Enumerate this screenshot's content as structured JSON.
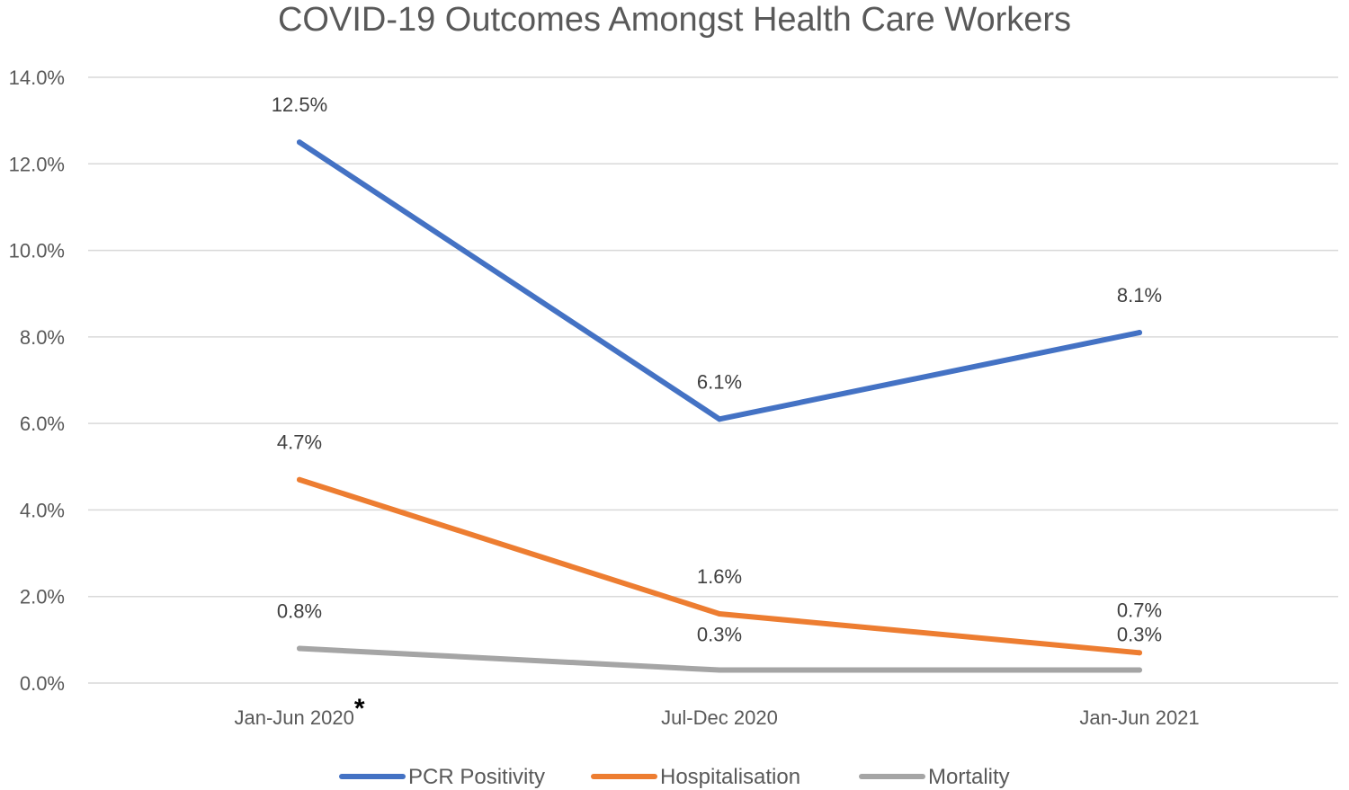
{
  "chart_data": {
    "type": "line",
    "title": "COVID-19 Outcomes Amongst Health Care Workers",
    "categories": [
      "Jan-Jun 2020",
      "Jul-Dec 2020",
      "Jan-Jun 2021"
    ],
    "category_markers": [
      "*",
      "",
      ""
    ],
    "ylim": [
      0,
      14
    ],
    "yticks": [
      0,
      2,
      4,
      6,
      8,
      10,
      12,
      14
    ],
    "ytick_labels": [
      "0.0%",
      "2.0%",
      "4.0%",
      "6.0%",
      "8.0%",
      "10.0%",
      "12.0%",
      "14.0%"
    ],
    "xlabel": "",
    "ylabel": "",
    "grid": true,
    "legend_position": "bottom",
    "series": [
      {
        "name": "PCR Positivity",
        "color": "#4472c4",
        "values": [
          12.5,
          6.1,
          8.1
        ],
        "labels": [
          "12.5%",
          "6.1%",
          "8.1%"
        ]
      },
      {
        "name": "Hospitalisation",
        "color": "#ed7d31",
        "values": [
          4.7,
          1.6,
          0.7
        ],
        "labels": [
          "4.7%",
          "1.6%",
          "0.7%"
        ]
      },
      {
        "name": "Mortality",
        "color": "#a5a5a5",
        "values": [
          0.8,
          0.3,
          0.3
        ],
        "labels": [
          "0.8%",
          "0.3%",
          "0.3%"
        ]
      }
    ]
  }
}
